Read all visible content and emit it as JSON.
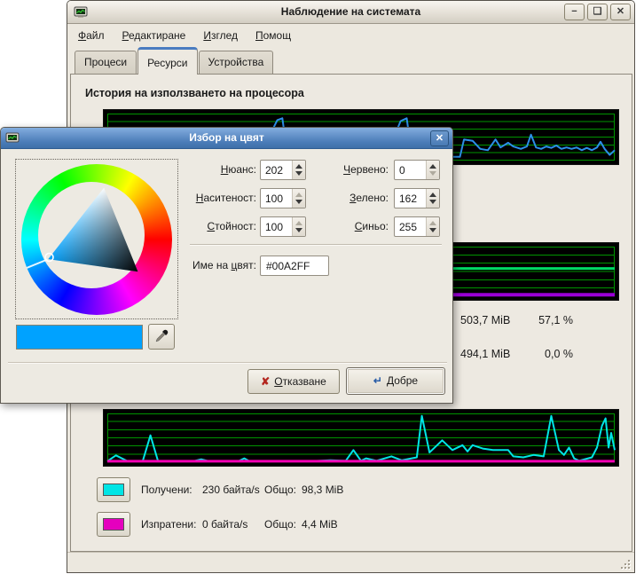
{
  "main_window": {
    "title": "Наблюдение на системата",
    "titlebar_buttons": {
      "minimize": "−",
      "maximize": "❑",
      "close": "✕"
    },
    "menu": [
      {
        "u": "Ф",
        "rest": "айл"
      },
      {
        "u": "Р",
        "rest": "едактиране"
      },
      {
        "u": "И",
        "rest": "зглед"
      },
      {
        "u": "П",
        "rest": "омощ"
      }
    ],
    "tabs": [
      {
        "label": "Процеси"
      },
      {
        "label": "Ресурси"
      },
      {
        "label": "Устройства"
      }
    ],
    "cpu_section_title": "История на използването на процесора",
    "memory_stats": {
      "memory_value": "503,7 MiB",
      "memory_percent": "57,1 %",
      "swap_value": "494,1 MiB",
      "swap_percent": "0,0 %"
    },
    "network_legend": {
      "received_label": "Получени:",
      "received_rate": "230 байта/s",
      "received_total_label": "Общо:",
      "received_total": "98,3 MiB",
      "received_color": "#00E5E5",
      "sent_label": "Изпратени:",
      "sent_rate": "0 байта/s",
      "sent_total_label": "Общо:",
      "sent_total": "4,4 MiB",
      "sent_color": "#E500BE"
    }
  },
  "dialog": {
    "title": "Избор на цвят",
    "close_glyph": "✕",
    "fields": [
      {
        "key": "hue",
        "label_u": "Н",
        "label_rest": "юанс:",
        "value": "202",
        "up": true,
        "down": true
      },
      {
        "key": "saturation",
        "label_u": "Н",
        "label_rest": "аситеност:",
        "value": "100",
        "up": false,
        "down": true
      },
      {
        "key": "value",
        "label_u": "С",
        "label_rest": "тойност:",
        "value": "100",
        "up": false,
        "down": true
      },
      {
        "key": "red",
        "label_u": "Ч",
        "label_rest": "ервено:",
        "value": "0",
        "up": true,
        "down": false
      },
      {
        "key": "green",
        "label_u": "З",
        "label_rest": "елено:",
        "value": "162",
        "up": true,
        "down": true
      },
      {
        "key": "blue",
        "label_u": "С",
        "label_rest": "иньо:",
        "value": "255",
        "up": false,
        "down": true
      }
    ],
    "color_name_label": {
      "pre": "Име на ",
      "u": "ц",
      "post": "вят:"
    },
    "color_name_value": "#00A2FF",
    "selected_color": "#00A2FF",
    "cancel": {
      "icon": "✘",
      "u": "О",
      "rest": "тказване"
    },
    "ok": {
      "icon": "↵",
      "u": "Д",
      "rest": "обре"
    }
  },
  "chart_data": [
    {
      "id": "cpu",
      "type": "line",
      "title": "История на използването на процесора",
      "bg": "#000000",
      "grid_color": "#009400",
      "ylim": [
        0,
        100
      ],
      "grid_rows": 6,
      "series": [
        {
          "name": "cpu",
          "color": "#2B8FE8",
          "width": 2,
          "points": [
            [
              0,
              10
            ],
            [
              5,
              8
            ],
            [
              10,
              12
            ],
            [
              15,
              8
            ],
            [
              20,
              10
            ],
            [
              25,
              8
            ],
            [
              30,
              10
            ],
            [
              33.5,
              86
            ],
            [
              34.5,
              90
            ],
            [
              35.5,
              12
            ],
            [
              40,
              8
            ],
            [
              45,
              10
            ],
            [
              50,
              8
            ],
            [
              55,
              10
            ],
            [
              57.8,
              84
            ],
            [
              59,
              90
            ],
            [
              60,
              12
            ],
            [
              64,
              8
            ],
            [
              68,
              8
            ],
            [
              69.5,
              8
            ],
            [
              70.3,
              45
            ],
            [
              72,
              42
            ],
            [
              73.5,
              25
            ],
            [
              75,
              22
            ],
            [
              76.5,
              45
            ],
            [
              77.5,
              28
            ],
            [
              79,
              38
            ],
            [
              80,
              30
            ],
            [
              81.5,
              25
            ],
            [
              82.7,
              30
            ],
            [
              83.5,
              55
            ],
            [
              84.5,
              28
            ],
            [
              85.5,
              25
            ],
            [
              86.5,
              30
            ],
            [
              87.5,
              27
            ],
            [
              88.5,
              32
            ],
            [
              89.5,
              25
            ],
            [
              90.5,
              28
            ],
            [
              91.5,
              25
            ],
            [
              92.5,
              28
            ],
            [
              93.5,
              22
            ],
            [
              94.5,
              27
            ],
            [
              95.5,
              22
            ],
            [
              96.5,
              28
            ],
            [
              97.2,
              40
            ],
            [
              98,
              25
            ],
            [
              99,
              12
            ],
            [
              100,
              22
            ]
          ]
        }
      ]
    },
    {
      "id": "memory",
      "type": "line",
      "title": "Памет",
      "bg": "#000000",
      "grid_color": "#009400",
      "ylim": [
        0,
        100
      ],
      "grid_rows": 6,
      "series": [
        {
          "name": "memory",
          "color": "#00DA65",
          "width": 3,
          "points": [
            [
              0,
              56
            ],
            [
              100,
              56
            ]
          ]
        },
        {
          "name": "swap",
          "color": "#9A00D6",
          "width": 4,
          "points": [
            [
              0,
              3
            ],
            [
              100,
              3
            ]
          ]
        }
      ]
    },
    {
      "id": "network",
      "type": "line",
      "title": "Мрежа",
      "bg": "#000000",
      "grid_color": "#009400",
      "ylim": [
        0,
        100
      ],
      "grid_rows": 6,
      "series": [
        {
          "name": "received",
          "color": "#00E5E5",
          "width": 2,
          "points": [
            [
              0,
              2
            ],
            [
              1.7,
              14
            ],
            [
              4,
              2
            ],
            [
              7,
              3
            ],
            [
              8.5,
              55
            ],
            [
              10,
              2
            ],
            [
              17,
              2
            ],
            [
              18.5,
              6
            ],
            [
              20,
              2
            ],
            [
              26,
              3
            ],
            [
              27,
              8
            ],
            [
              28,
              2
            ],
            [
              40,
              2
            ],
            [
              44,
              4
            ],
            [
              47,
              3
            ],
            [
              48.5,
              25
            ],
            [
              50,
              3
            ],
            [
              51,
              8
            ],
            [
              53,
              3
            ],
            [
              56,
              12
            ],
            [
              58,
              4
            ],
            [
              61,
              10
            ],
            [
              62,
              95
            ],
            [
              63.5,
              20
            ],
            [
              65,
              35
            ],
            [
              66,
              45
            ],
            [
              68,
              25
            ],
            [
              70,
              35
            ],
            [
              71,
              22
            ],
            [
              72,
              35
            ],
            [
              74,
              28
            ],
            [
              76,
              25
            ],
            [
              79,
              25
            ],
            [
              80,
              12
            ],
            [
              82,
              10
            ],
            [
              84,
              15
            ],
            [
              86,
              12
            ],
            [
              87.5,
              95
            ],
            [
              89,
              25
            ],
            [
              90,
              15
            ],
            [
              91,
              30
            ],
            [
              92,
              8
            ],
            [
              93,
              3
            ],
            [
              95.5,
              10
            ],
            [
              96.5,
              30
            ],
            [
              97.5,
              75
            ],
            [
              98.2,
              90
            ],
            [
              98.8,
              30
            ],
            [
              99.3,
              60
            ],
            [
              100,
              25
            ]
          ]
        },
        {
          "name": "sent",
          "color": "#F500B4",
          "width": 3,
          "points": [
            [
              0,
              2
            ],
            [
              100,
              2
            ]
          ]
        }
      ]
    }
  ]
}
